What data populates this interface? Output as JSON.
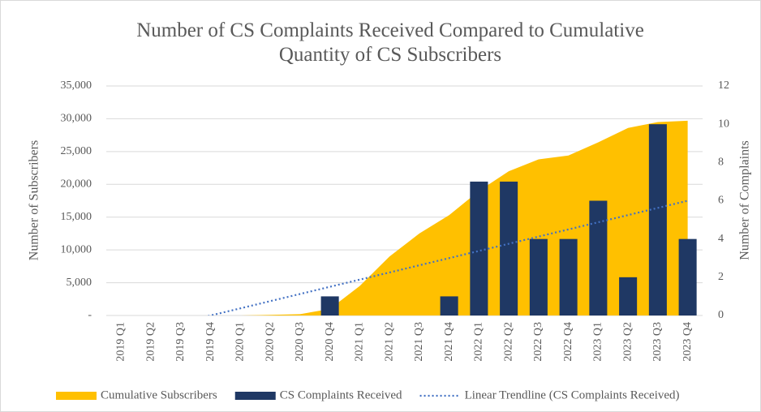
{
  "chart_data": {
    "type": "combo",
    "title": "Number of CS Complaints Received Compared to Cumulative Quantity of CS Subscribers",
    "ylabel": "Number of Subscribers",
    "y2label": "Number of Complaints",
    "categories": [
      "2019 Q1",
      "2019 Q2",
      "2019 Q3",
      "2019 Q4",
      "2020 Q1",
      "2020 Q2",
      "2020 Q3",
      "2020 Q4",
      "2021 Q1",
      "2021 Q2",
      "2021 Q3",
      "2021 Q4",
      "2022 Q1",
      "2022 Q2",
      "2022 Q3",
      "2022 Q4",
      "2023 Q1",
      "2023 Q2",
      "2023 Q3",
      "2023 Q4"
    ],
    "series": [
      {
        "name": "Cumulative Subscribers",
        "type": "area",
        "color": "#ffc000",
        "values": [
          0,
          0,
          0,
          0,
          0,
          100,
          200,
          1000,
          4500,
          9000,
          12500,
          15300,
          19000,
          22000,
          23800,
          24400,
          26400,
          28600,
          29500,
          29700
        ]
      },
      {
        "name": "CS Complaints Received",
        "type": "bar",
        "axis": "y2",
        "color": "#1f3864",
        "values": [
          0,
          0,
          0,
          0,
          0,
          0,
          0,
          1,
          0,
          0,
          0,
          1,
          7,
          7,
          4,
          4,
          6,
          2,
          10,
          4
        ]
      },
      {
        "name": "Linear Trendline (CS Complaints Received)",
        "type": "line",
        "axis": "y2",
        "color": "#4472c4",
        "dotted": true,
        "values": [
          -1.125,
          -0.75,
          -0.375,
          0,
          0.375,
          0.75,
          1.125,
          1.5,
          1.875,
          2.25,
          2.625,
          3,
          3.375,
          3.75,
          4.125,
          4.5,
          4.875,
          5.25,
          5.625,
          6
        ]
      }
    ],
    "ylim": [
      0,
      35000
    ],
    "yticks": [
      {
        "value": 0,
        "label": "-"
      },
      {
        "value": 5000,
        "label": "5,000"
      },
      {
        "value": 10000,
        "label": "10,000"
      },
      {
        "value": 15000,
        "label": "15,000"
      },
      {
        "value": 20000,
        "label": "20,000"
      },
      {
        "value": 25000,
        "label": "25,000"
      },
      {
        "value": 30000,
        "label": "30,000"
      },
      {
        "value": 35000,
        "label": "35,000"
      }
    ],
    "y2lim": [
      0,
      12
    ],
    "y2ticks": [
      0,
      2,
      4,
      6,
      8,
      10,
      12
    ],
    "grid": true,
    "legend": "bottom"
  }
}
